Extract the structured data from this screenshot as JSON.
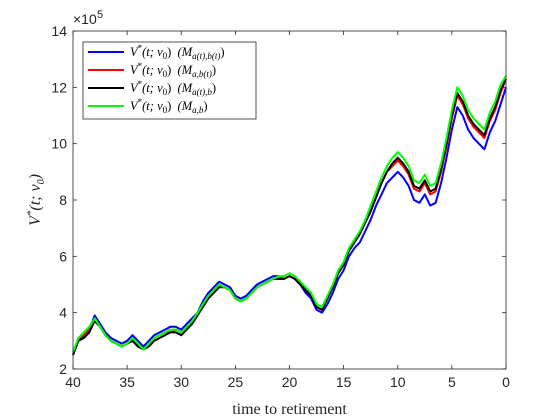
{
  "chart_data": {
    "type": "line",
    "title": "",
    "xlabel": "time to retirement",
    "ylabel": "V*(t; v0)",
    "x_reversed": true,
    "xlim": [
      40,
      0
    ],
    "ylim": [
      2,
      14
    ],
    "y_multiplier_label": "×10",
    "y_multiplier_exponent": "5",
    "x_ticks": [
      40,
      35,
      30,
      25,
      20,
      15,
      10,
      5,
      0
    ],
    "y_ticks": [
      2,
      4,
      6,
      8,
      10,
      12,
      14
    ],
    "grid": false,
    "legend_position": "top-left",
    "x": [
      40,
      39.5,
      39,
      38.5,
      38,
      37.5,
      37,
      36.5,
      36,
      35.5,
      35,
      34.5,
      34,
      33.5,
      33,
      32.5,
      32,
      31.5,
      31,
      30.5,
      30,
      29.5,
      29,
      28.5,
      28,
      27.5,
      27,
      26.5,
      26,
      25.5,
      25,
      24.5,
      24,
      23.5,
      23,
      22.5,
      22,
      21.5,
      21,
      20.5,
      20,
      19.5,
      19,
      18.5,
      18,
      17.5,
      17,
      16.5,
      16,
      15.5,
      15,
      14.5,
      14,
      13.5,
      13,
      12.5,
      12,
      11.5,
      11,
      10.5,
      10,
      9.5,
      9,
      8.5,
      8,
      7.5,
      7,
      6.5,
      6,
      5.5,
      5,
      4.5,
      4,
      3.5,
      3,
      2.5,
      2,
      1.5,
      1,
      0.5,
      0
    ],
    "series": [
      {
        "name": "V*(t; v0) (M_{a(t),b(t)})",
        "color": "#0000ff",
        "values": [
          2.5,
          3.0,
          3.2,
          3.4,
          3.9,
          3.6,
          3.3,
          3.1,
          3.0,
          2.9,
          3.0,
          3.2,
          3.0,
          2.8,
          3.0,
          3.2,
          3.3,
          3.4,
          3.5,
          3.5,
          3.4,
          3.6,
          3.8,
          4.0,
          4.4,
          4.7,
          4.9,
          5.1,
          5.0,
          4.9,
          4.6,
          4.5,
          4.6,
          4.8,
          5.0,
          5.1,
          5.2,
          5.3,
          5.3,
          5.2,
          5.3,
          5.2,
          5.0,
          4.7,
          4.5,
          4.1,
          4.0,
          4.3,
          4.7,
          5.2,
          5.5,
          6.0,
          6.3,
          6.5,
          6.9,
          7.3,
          7.8,
          8.2,
          8.6,
          8.8,
          9.0,
          8.8,
          8.5,
          8.0,
          7.9,
          8.2,
          7.8,
          7.9,
          8.6,
          9.5,
          10.5,
          11.3,
          11.0,
          10.5,
          10.2,
          10.0,
          9.8,
          10.4,
          10.8,
          11.4,
          12.0
        ]
      },
      {
        "name": "V*(t; v0) (M_{a,b(t)})",
        "color": "#ff0000",
        "values": [
          2.5,
          3.1,
          3.2,
          3.4,
          3.8,
          3.5,
          3.2,
          3.0,
          2.9,
          2.8,
          2.9,
          3.0,
          2.9,
          2.7,
          2.9,
          3.1,
          3.2,
          3.3,
          3.3,
          3.4,
          3.3,
          3.5,
          3.7,
          3.9,
          4.3,
          4.6,
          4.8,
          5.0,
          4.9,
          4.8,
          4.5,
          4.4,
          4.5,
          4.7,
          4.9,
          5.0,
          5.1,
          5.2,
          5.2,
          5.2,
          5.3,
          5.2,
          5.0,
          4.8,
          4.6,
          4.2,
          4.1,
          4.5,
          4.9,
          5.4,
          5.7,
          6.2,
          6.5,
          6.8,
          7.2,
          7.6,
          8.1,
          8.6,
          9.0,
          9.2,
          9.4,
          9.2,
          8.9,
          8.4,
          8.3,
          8.6,
          8.2,
          8.3,
          9.0,
          9.9,
          10.9,
          11.7,
          11.4,
          10.9,
          10.6,
          10.4,
          10.2,
          10.8,
          11.2,
          11.8,
          12.3
        ]
      },
      {
        "name": "V*(t; v0) (M_{a(t),b})",
        "color": "#000000",
        "values": [
          2.5,
          3.0,
          3.1,
          3.3,
          3.7,
          3.5,
          3.2,
          3.0,
          2.9,
          2.8,
          2.9,
          3.0,
          2.8,
          2.7,
          2.8,
          3.0,
          3.1,
          3.2,
          3.3,
          3.3,
          3.2,
          3.4,
          3.6,
          3.9,
          4.2,
          4.5,
          4.7,
          4.9,
          4.9,
          4.8,
          4.5,
          4.4,
          4.5,
          4.7,
          4.9,
          5.0,
          5.1,
          5.2,
          5.2,
          5.2,
          5.3,
          5.2,
          5.0,
          4.8,
          4.6,
          4.2,
          4.1,
          4.5,
          4.9,
          5.4,
          5.7,
          6.2,
          6.5,
          6.8,
          7.2,
          7.6,
          8.1,
          8.6,
          9.0,
          9.3,
          9.5,
          9.3,
          9.0,
          8.5,
          8.4,
          8.7,
          8.3,
          8.4,
          9.1,
          10.0,
          11.0,
          11.8,
          11.5,
          11.0,
          10.7,
          10.5,
          10.3,
          10.9,
          11.3,
          11.9,
          12.3
        ]
      },
      {
        "name": "V*(t; v0) (M_{a,b})",
        "color": "#00ff00",
        "values": [
          2.6,
          3.1,
          3.3,
          3.5,
          3.8,
          3.5,
          3.2,
          3.0,
          2.9,
          2.8,
          2.9,
          3.1,
          2.9,
          2.7,
          2.9,
          3.1,
          3.2,
          3.3,
          3.4,
          3.4,
          3.3,
          3.5,
          3.7,
          4.0,
          4.3,
          4.6,
          4.8,
          5.0,
          4.9,
          4.8,
          4.5,
          4.4,
          4.5,
          4.7,
          4.9,
          5.0,
          5.1,
          5.2,
          5.3,
          5.3,
          5.4,
          5.3,
          5.1,
          4.9,
          4.7,
          4.3,
          4.2,
          4.6,
          5.0,
          5.5,
          5.8,
          6.3,
          6.6,
          6.9,
          7.3,
          7.8,
          8.3,
          8.8,
          9.2,
          9.5,
          9.7,
          9.5,
          9.2,
          8.7,
          8.6,
          8.9,
          8.5,
          8.6,
          9.3,
          10.2,
          11.2,
          12.0,
          11.7,
          11.2,
          10.9,
          10.7,
          10.5,
          11.1,
          11.5,
          12.1,
          12.4
        ]
      }
    ]
  },
  "legend": [
    {
      "prefix": "V",
      "star": "*",
      "args": "(t; v",
      "sub0": "0",
      "close": ")",
      "m": "(M",
      "msub": "a(t),b(t)",
      "mclose": ")"
    },
    {
      "prefix": "V",
      "star": "*",
      "args": "(t; v",
      "sub0": "0",
      "close": ")",
      "m": "(M",
      "msub": "a,b(t)",
      "mclose": ")"
    },
    {
      "prefix": "V",
      "star": "*",
      "args": "(t; v",
      "sub0": "0",
      "close": ")",
      "m": "(M",
      "msub": "a(t),b",
      "mclose": ")"
    },
    {
      "prefix": "V",
      "star": "*",
      "args": "(t; v",
      "sub0": "0",
      "close": ")",
      "m": "(M",
      "msub": "a,b",
      "mclose": ")"
    }
  ],
  "ylabel_parts": {
    "prefix": "V",
    "star": "*",
    "args": "(t; v",
    "sub0": "0",
    "close": ")"
  }
}
